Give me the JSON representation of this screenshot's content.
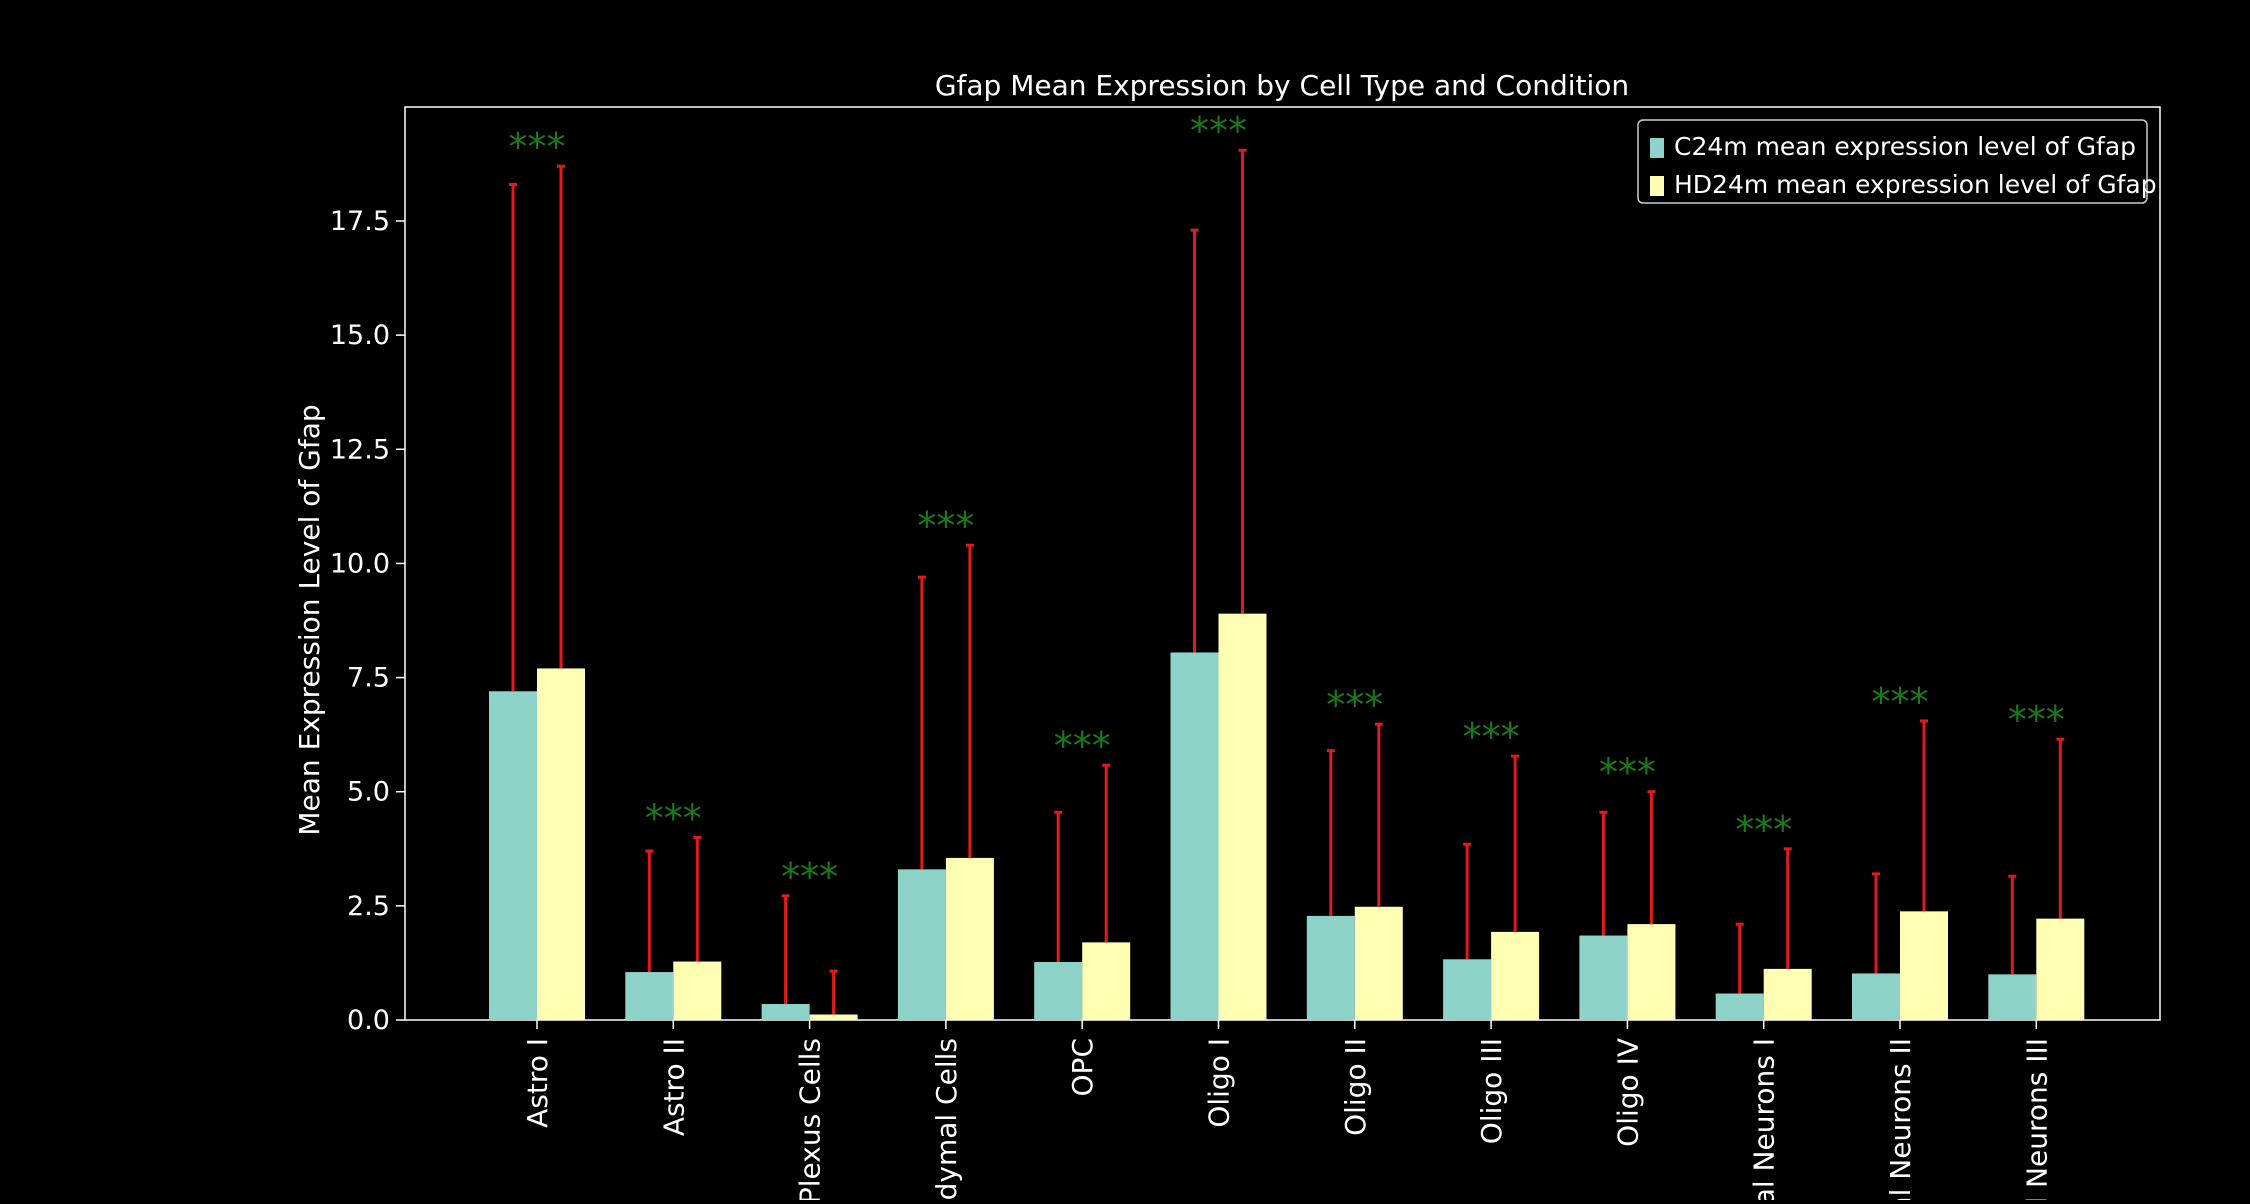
{
  "chart_data": {
    "type": "bar",
    "title": "Gfap Mean Expression by Cell Type and Condition",
    "xlabel": "",
    "ylabel": "Mean Expression Level of Gfap",
    "ylim": [
      0,
      20
    ],
    "yticks": [
      0.0,
      2.5,
      5.0,
      7.5,
      10.0,
      12.5,
      15.0,
      17.5
    ],
    "ytick_labels": [
      "0.0",
      "2.5",
      "5.0",
      "7.5",
      "10.0",
      "12.5",
      "15.0",
      "17.5"
    ],
    "categories": [
      "Astro I",
      "Astro II",
      "Plexus Cells",
      "ndymal Cells",
      "OPC",
      "Oligo I",
      "Oligo II",
      "Oligo III",
      "Oligo IV",
      "tal Neurons I",
      "al Neurons II",
      "al Neurons III"
    ],
    "series": [
      {
        "name": "C24m mean expression level of Gfap",
        "color": "#8dd3c7",
        "values": [
          7.2,
          1.05,
          0.35,
          3.3,
          1.27,
          8.05,
          2.28,
          1.33,
          1.85,
          0.58,
          1.02,
          1.0
        ],
        "err_upper": [
          18.3,
          3.7,
          2.72,
          9.7,
          4.55,
          17.3,
          5.9,
          3.85,
          4.55,
          2.1,
          3.2,
          3.15
        ]
      },
      {
        "name": "HD24m mean expression level of Gfap",
        "color": "#ffffb3",
        "values": [
          7.7,
          1.28,
          0.12,
          3.55,
          1.7,
          8.9,
          2.48,
          1.93,
          2.1,
          1.12,
          2.38,
          2.22
        ],
        "err_upper": [
          18.7,
          4.0,
          1.07,
          10.4,
          5.58,
          19.05,
          6.48,
          5.78,
          5.0,
          3.75,
          6.55,
          6.15
        ]
      }
    ],
    "significance": {
      "label": "***",
      "color": "#1a7a1a",
      "markers": [
        "***",
        "***",
        "***",
        "***",
        "***",
        "***",
        "***",
        "***",
        "***",
        "***",
        "***",
        "***"
      ]
    },
    "error_bar_color": "#e31a1c",
    "legend_placement": "top-right",
    "grid": false,
    "background": "#000000",
    "foreground": "#ffffff"
  }
}
